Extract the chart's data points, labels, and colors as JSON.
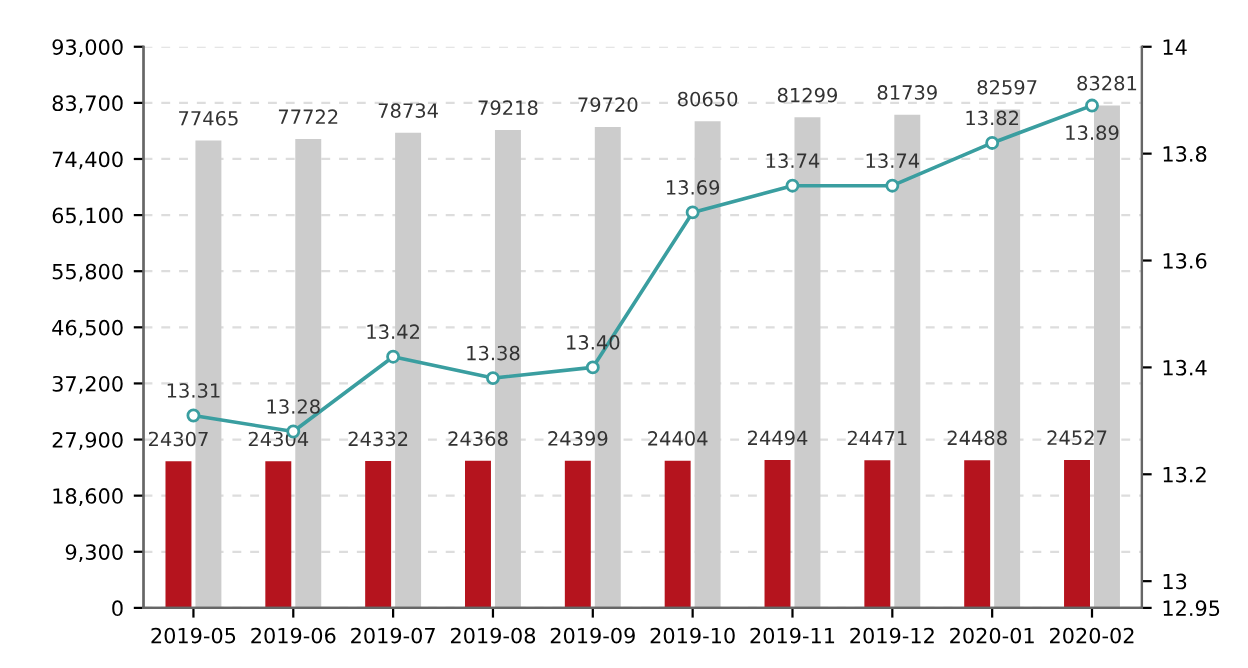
{
  "chart_data": {
    "type": "bar",
    "categories": [
      "2019-05",
      "2019-06",
      "2019-07",
      "2019-08",
      "2019-09",
      "2019-10",
      "2019-11",
      "2019-12",
      "2020-01",
      "2020-02"
    ],
    "series": [
      {
        "color": "#b5141e",
        "values": [
          24307,
          24304,
          24332,
          24368,
          24399,
          24404,
          24494,
          24471,
          24488,
          24527
        ]
      },
      {
        "color": "#cccccc",
        "values": [
          77465,
          77722,
          78734,
          79218,
          79720,
          80650,
          81299,
          81739,
          82597,
          83281
        ]
      },
      {
        "type": "line",
        "axis": "y2",
        "color": "#3a9ea0",
        "values": [
          13.31,
          13.28,
          13.42,
          13.38,
          13.4,
          13.69,
          13.74,
          13.74,
          13.82,
          13.89
        ],
        "value_labels": [
          "13.31",
          "13.28",
          "13.42",
          "13.38",
          "13.40",
          "13.69",
          "13.74",
          "13.74",
          "13.82",
          "13.89"
        ]
      }
    ],
    "data_labels": true,
    "marker": "circle",
    "line_style": "solid",
    "grid": "y",
    "ylim": [
      0,
      93000
    ],
    "yticks": [
      {
        "value": 0,
        "label": "0"
      },
      {
        "value": 9300,
        "label": "9,300"
      },
      {
        "value": 18600,
        "label": "18,600"
      },
      {
        "value": 27900,
        "label": "27,900"
      },
      {
        "value": 37200,
        "label": "37,200"
      },
      {
        "value": 46500,
        "label": "46,500"
      },
      {
        "value": 55800,
        "label": "55,800"
      },
      {
        "value": 65100,
        "label": "65,100"
      },
      {
        "value": 74400,
        "label": "74,400"
      },
      {
        "value": 83700,
        "label": "83,700"
      },
      {
        "value": 93000,
        "label": "93,000"
      }
    ],
    "y2lim": [
      12.95,
      14
    ],
    "y2ticks": [
      12.95,
      13,
      13.2,
      13.4,
      13.6,
      13.8,
      14
    ]
  }
}
